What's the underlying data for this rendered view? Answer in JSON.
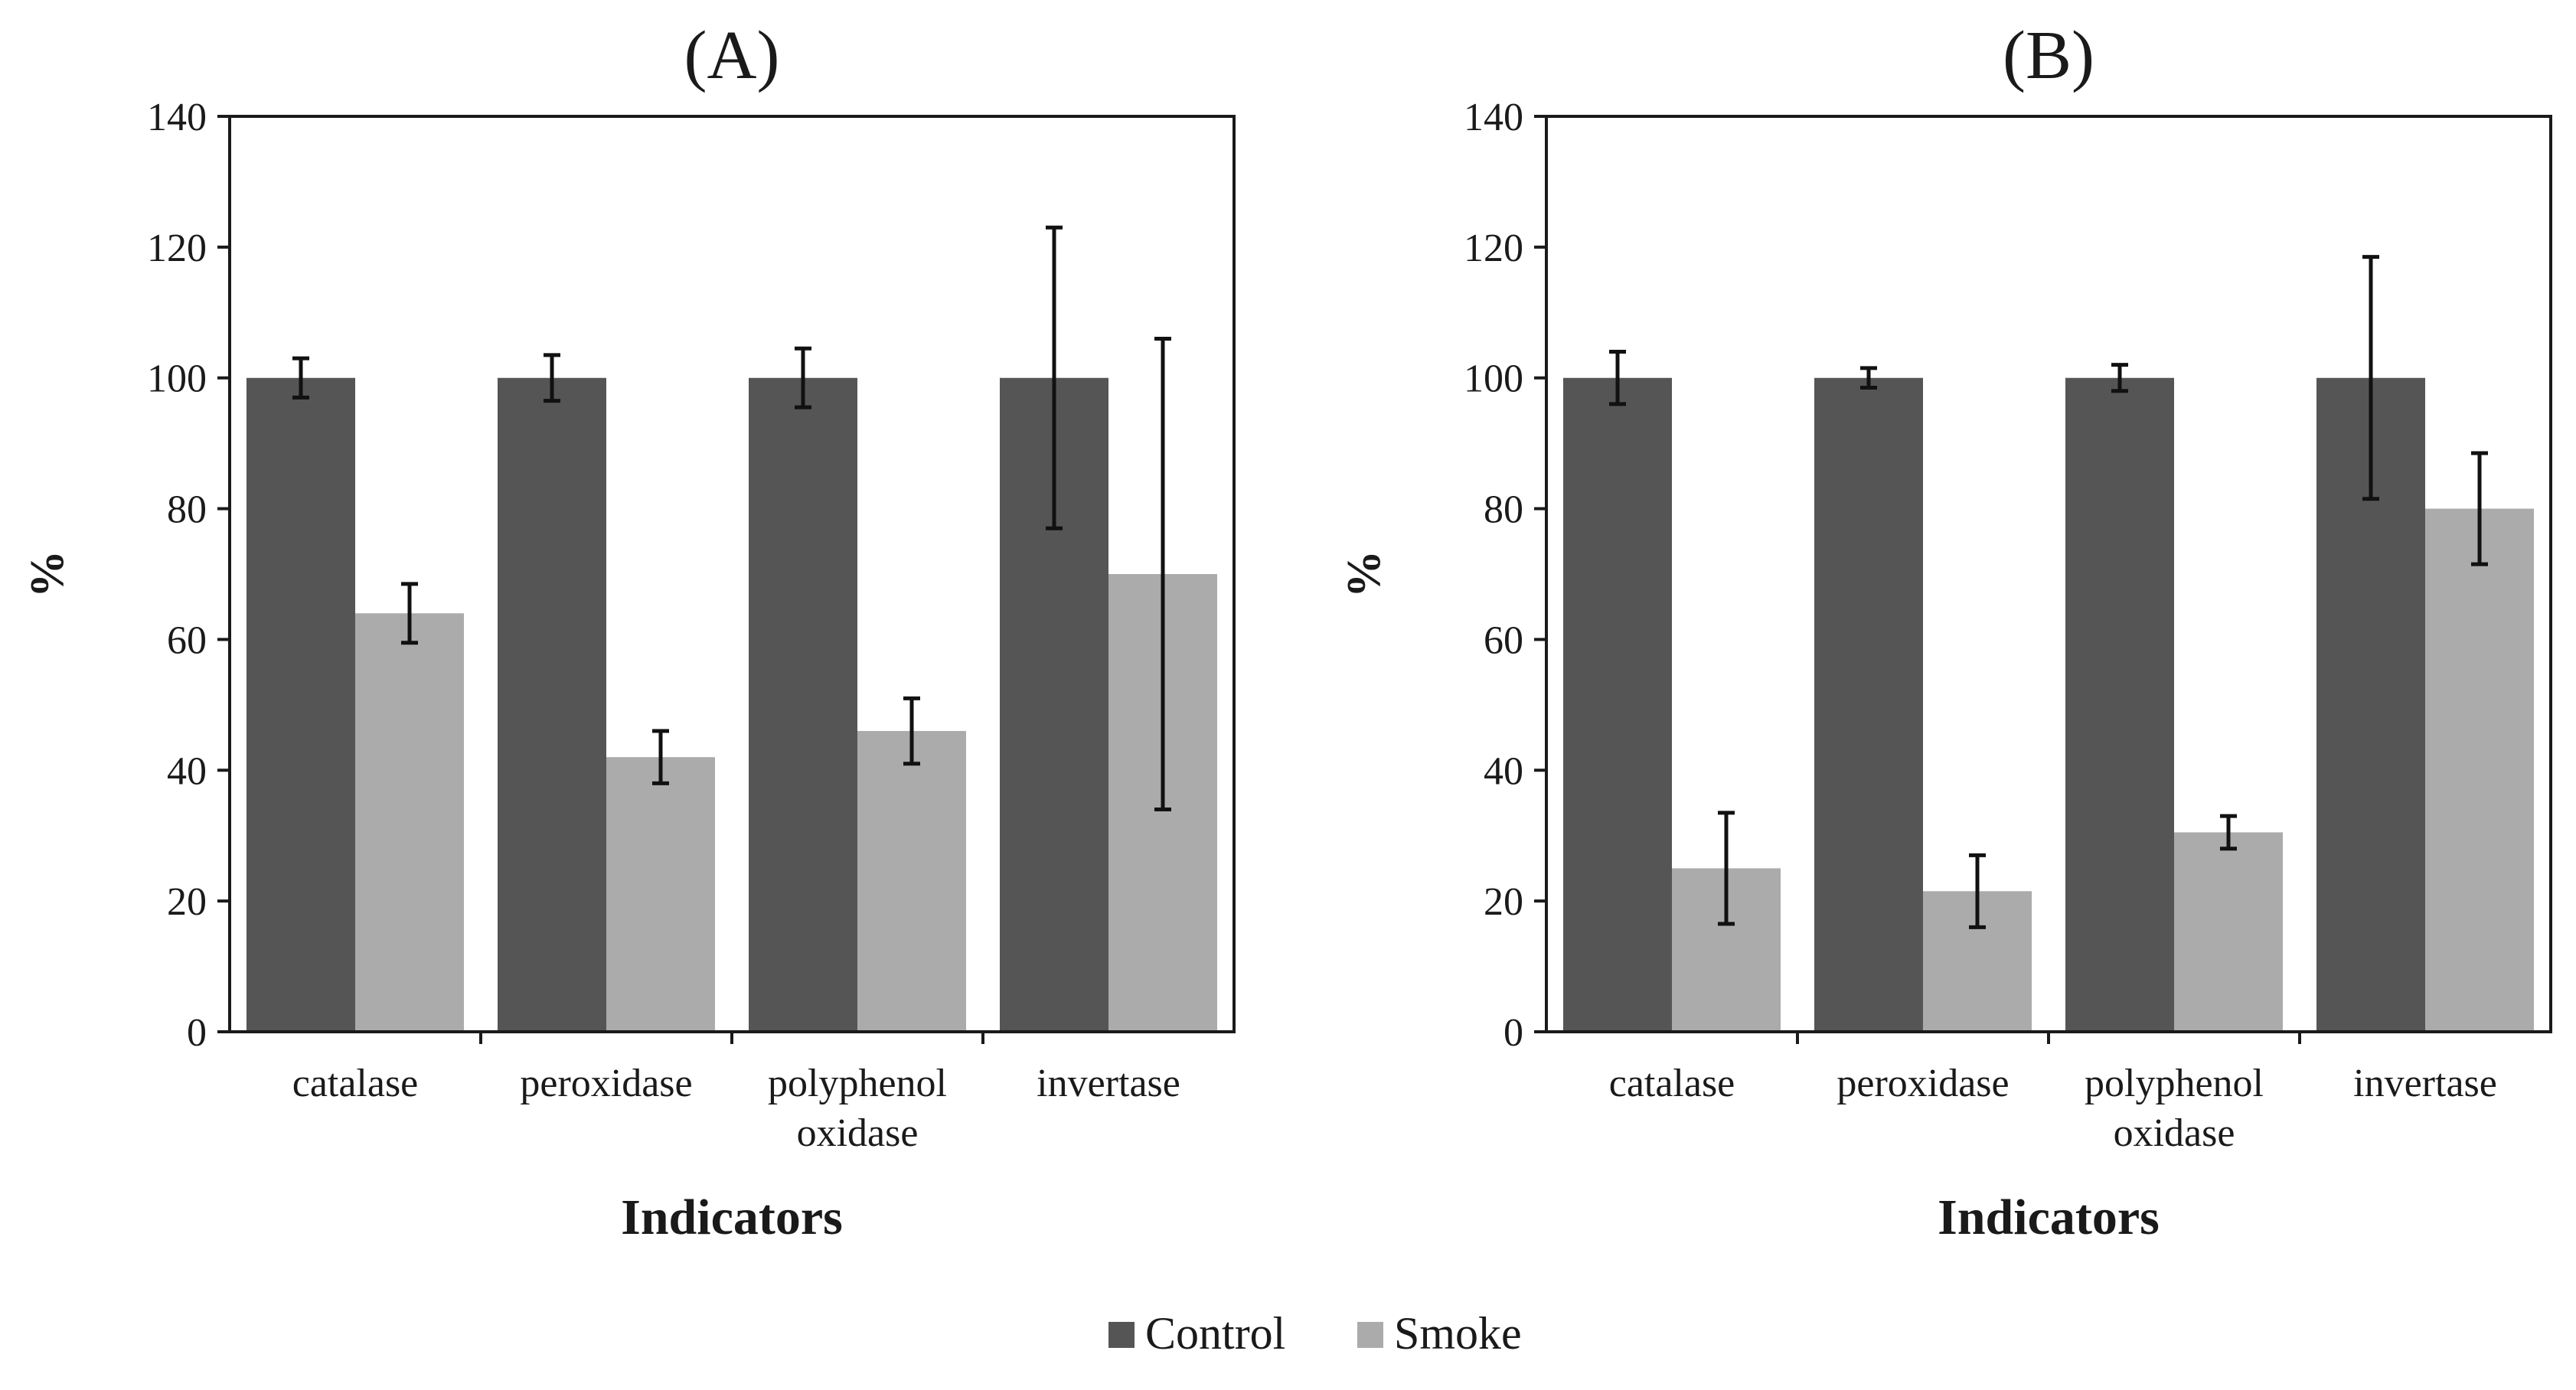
{
  "legend": {
    "items": [
      {
        "name": "Control",
        "color": "#555555"
      },
      {
        "name": "Smoke",
        "color": "#ababab"
      }
    ]
  },
  "chart_data": [
    {
      "type": "bar",
      "title": "(A)",
      "xlabel": "Indicators",
      "ylabel": "%",
      "ylim": [
        0,
        140
      ],
      "yticks": [
        0,
        20,
        40,
        60,
        80,
        100,
        120,
        140
      ],
      "categories": [
        [
          "catalase"
        ],
        [
          "peroxidase"
        ],
        [
          "polyphenol",
          "oxidase"
        ],
        [
          "invertase"
        ]
      ],
      "series": [
        {
          "name": "Control",
          "color": "#555555",
          "values": [
            100,
            100,
            100,
            100
          ],
          "errors": [
            3,
            3.5,
            4.5,
            23
          ]
        },
        {
          "name": "Smoke",
          "color": "#ababab",
          "values": [
            64,
            42,
            46,
            70
          ],
          "errors": [
            4.5,
            4,
            5,
            36
          ]
        }
      ],
      "grid": false
    },
    {
      "type": "bar",
      "title": "(B)",
      "xlabel": "Indicators",
      "ylabel": "%",
      "ylim": [
        0,
        140
      ],
      "yticks": [
        0,
        20,
        40,
        60,
        80,
        100,
        120,
        140
      ],
      "categories": [
        [
          "catalase"
        ],
        [
          "peroxidase"
        ],
        [
          "polyphenol",
          "oxidase"
        ],
        [
          "invertase"
        ]
      ],
      "series": [
        {
          "name": "Control",
          "color": "#555555",
          "values": [
            100,
            100,
            100,
            100
          ],
          "errors": [
            4,
            1.5,
            2,
            18.5
          ]
        },
        {
          "name": "Smoke",
          "color": "#ababab",
          "values": [
            25,
            21.5,
            30.5,
            80
          ],
          "errors": [
            8.5,
            5.5,
            2.5,
            8.5
          ]
        }
      ],
      "grid": false
    }
  ]
}
